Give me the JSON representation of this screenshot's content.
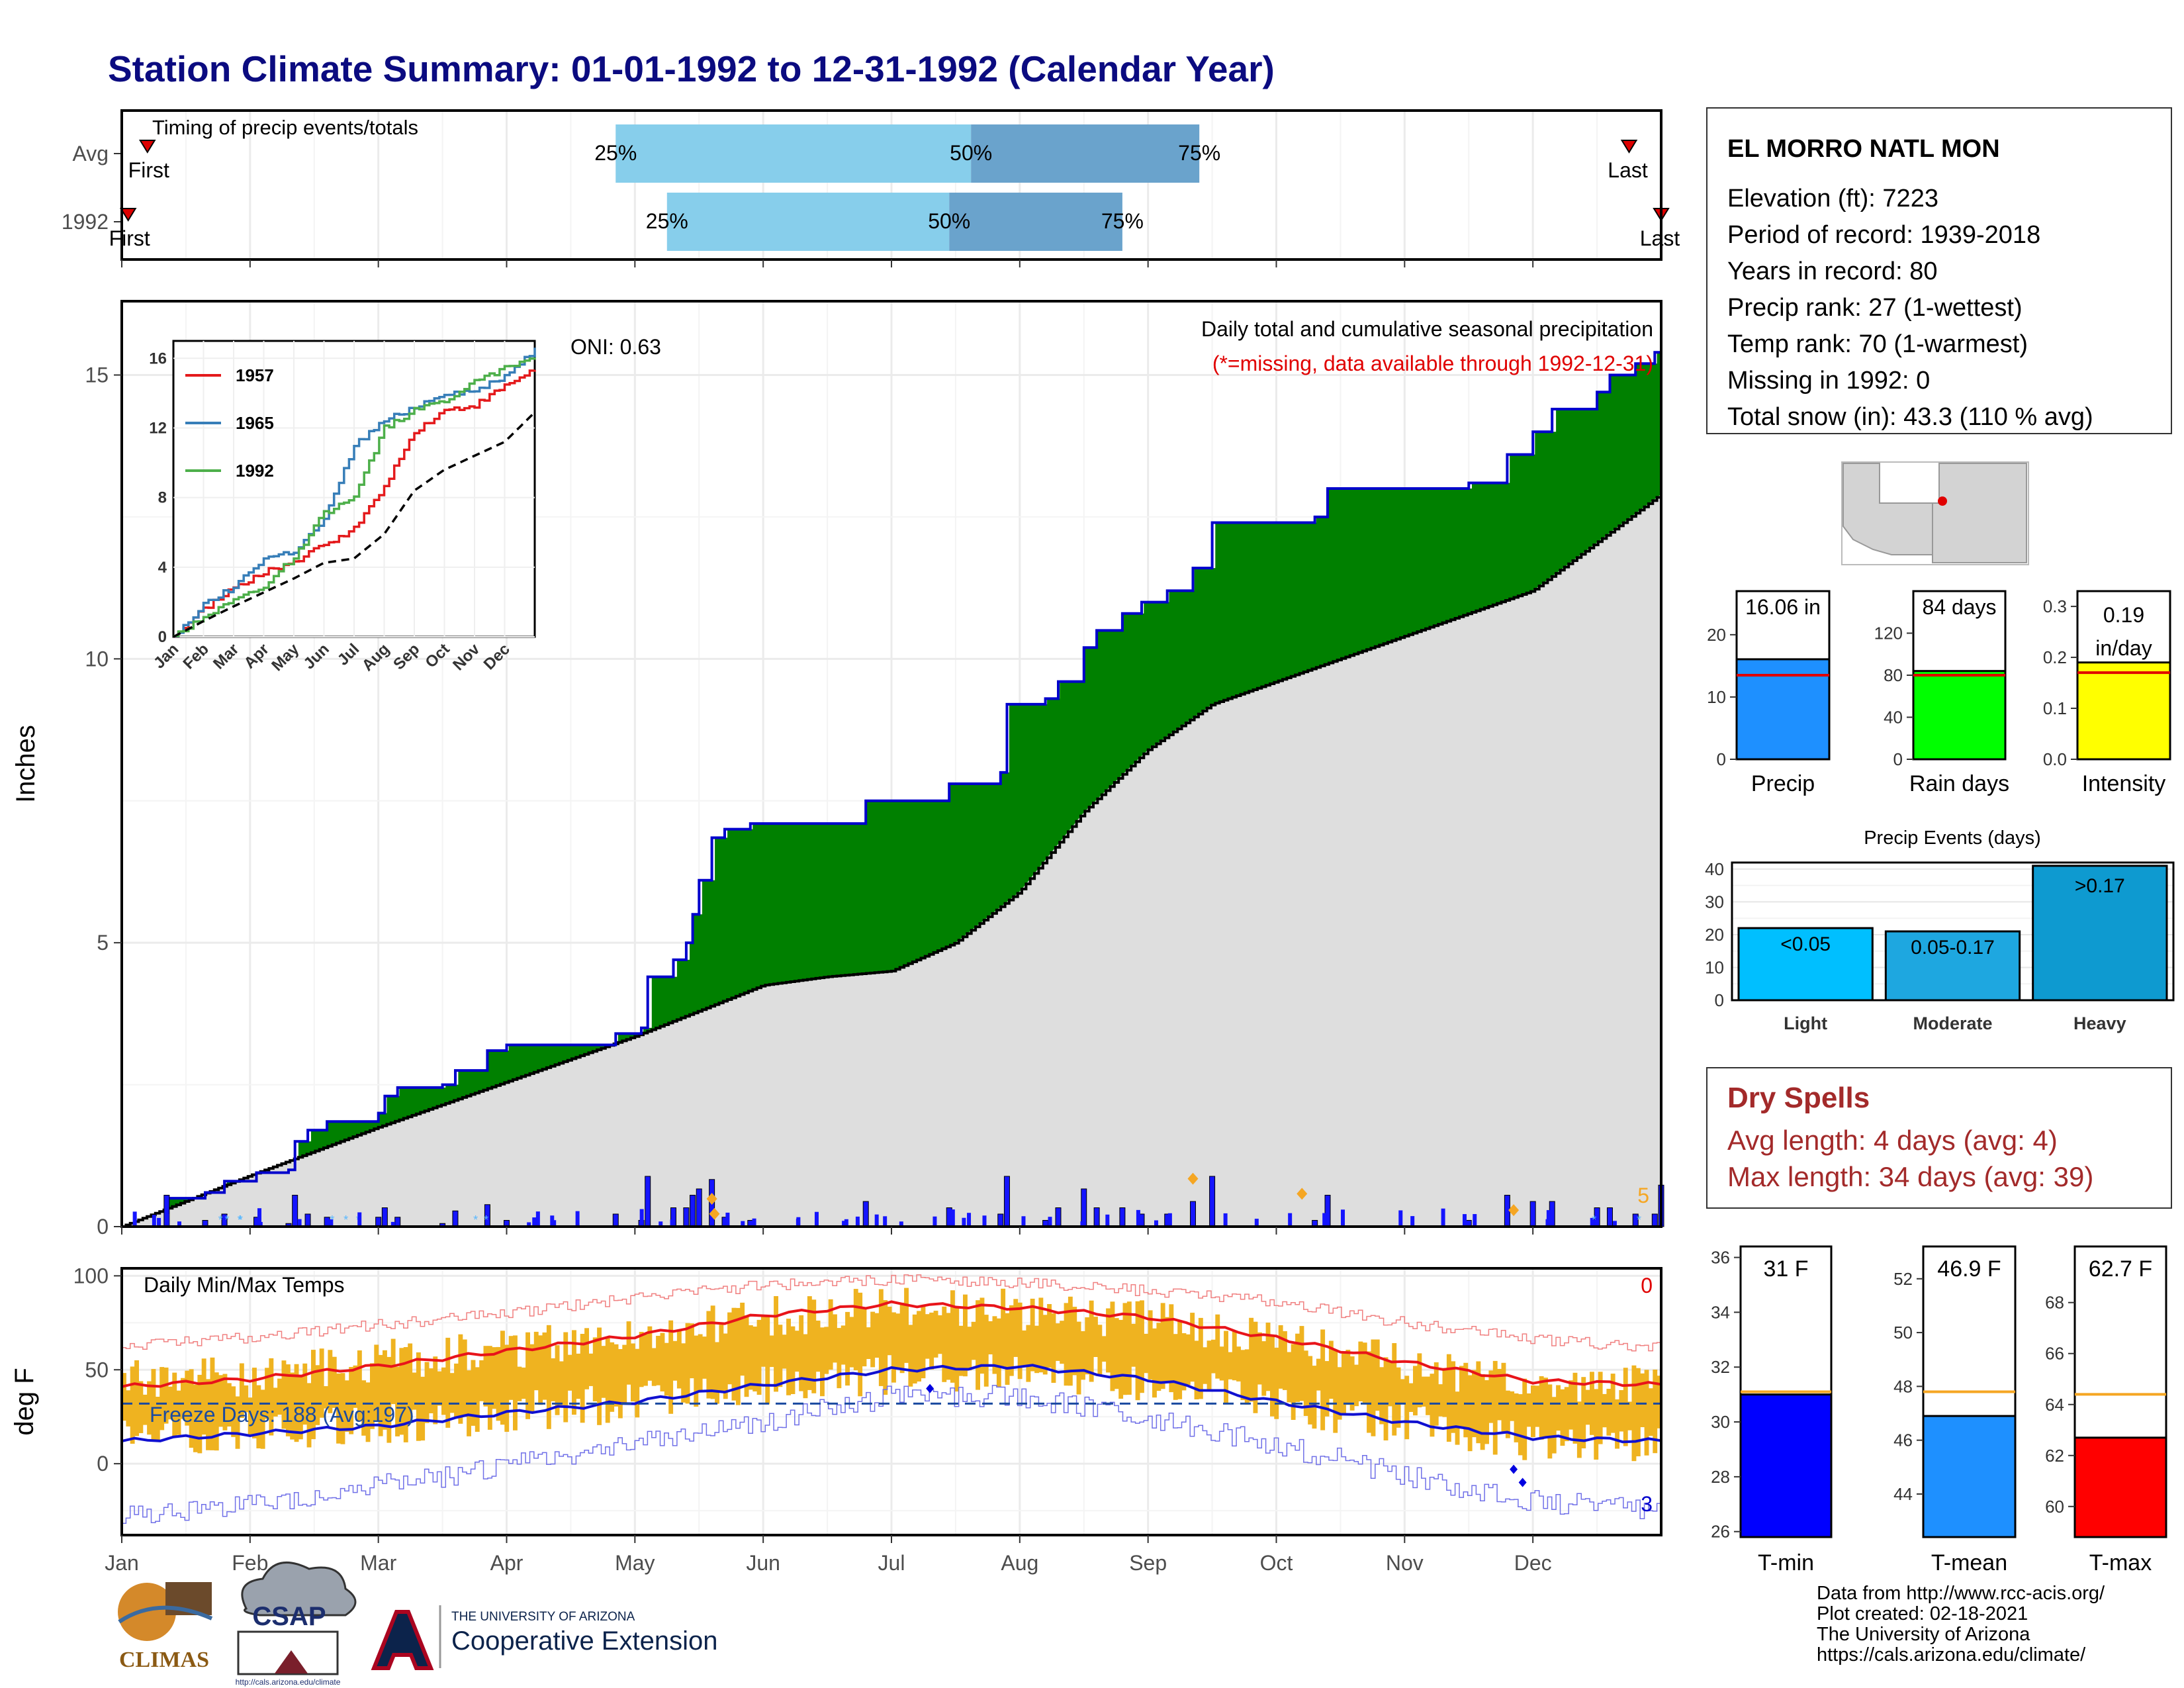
{
  "title": "Station Climate Summary: 01-01-1992 to 12-31-1992 (Calendar Year)",
  "station": {
    "name": "EL MORRO NATL MON",
    "lines": [
      "Elevation (ft): 7223",
      "Period of record: 1939-2018",
      "Years in record: 80",
      "Precip rank: 27 (1-wettest)",
      "Temp rank: 70 (1-warmest)",
      "Missing in 1992: 0",
      "Total snow (in): 43.3 (110 % avg)"
    ]
  },
  "dry_spells": {
    "title": "Dry Spells",
    "avg": "Avg length: 4 days (avg: 4)",
    "max": "Max length: 34 days (avg: 39)"
  },
  "credits": [
    "Data from http://www.rcc-acis.org/",
    "Plot created: 02-18-2021",
    "The University of Arizona",
    "https://cals.arizona.edu/climate/"
  ],
  "logos": {
    "climas": "CLIMAS",
    "csap": "CSAP",
    "csap_url": "http://cals.arizona.edu/climate",
    "ua_line1": "THE UNIVERSITY OF ARIZONA",
    "ua_line2": "Cooperative Extension"
  },
  "colors": {
    "title": "#0b0b80",
    "above_avg": "#008000",
    "below_avg": "#8b5a14",
    "avg_fill": "#dedede",
    "cum_line": "#0000cc",
    "temp_bar": "#efb320",
    "tmax_line": "#e8141a",
    "tmin_line": "#1010d0",
    "dry_spell": "#a32a2a"
  },
  "chart_data": [
    {
      "id": "timing",
      "type": "bar",
      "title": "Timing of precip events/totals",
      "rows": [
        "Avg",
        "1992"
      ],
      "x_units": "month",
      "series": [
        {
          "row": "Avg",
          "first_label": "First",
          "last_label": "Last",
          "first": 0.2,
          "p25": 3.85,
          "p50": 6.62,
          "p75": 8.4,
          "last": 11.75
        },
        {
          "row": "1992",
          "first_label": "First",
          "last_label": "Last",
          "first": 0.05,
          "p25": 4.25,
          "p50": 6.45,
          "p75": 7.8,
          "last": 12.0
        }
      ],
      "labels": {
        "p25": "25%",
        "p50": "50%",
        "p75": "75%"
      }
    },
    {
      "id": "precip",
      "type": "area",
      "title": "Daily total and cumulative seasonal precipitation",
      "subtitle": "(*=missing, data available through 1992-12-31)",
      "annotation": "ONI: 0.63",
      "ylabel": "Inches",
      "ylim": [
        0,
        16.3
      ],
      "yticks": [
        0,
        5,
        10,
        15
      ],
      "xticks": [
        "Jan",
        "Feb",
        "Mar",
        "Apr",
        "May",
        "Jun",
        "Jul",
        "Aug",
        "Sep",
        "Oct",
        "Nov",
        "Dec"
      ],
      "corner_label": "5",
      "observed_1992": [
        [
          0,
          0
        ],
        [
          0.35,
          0.5
        ],
        [
          0.65,
          0.6
        ],
        [
          0.8,
          0.8
        ],
        [
          1.05,
          0.95
        ],
        [
          1.3,
          1.0
        ],
        [
          1.35,
          1.5
        ],
        [
          1.45,
          1.7
        ],
        [
          1.6,
          1.85
        ],
        [
          2.0,
          2.0
        ],
        [
          2.05,
          2.3
        ],
        [
          2.15,
          2.45
        ],
        [
          2.5,
          2.5
        ],
        [
          2.6,
          2.75
        ],
        [
          2.85,
          3.1
        ],
        [
          3.0,
          3.2
        ],
        [
          3.5,
          3.2
        ],
        [
          3.85,
          3.4
        ],
        [
          4.05,
          3.5
        ],
        [
          4.1,
          4.4
        ],
        [
          4.3,
          4.7
        ],
        [
          4.4,
          5.0
        ],
        [
          4.45,
          5.5
        ],
        [
          4.5,
          6.1
        ],
        [
          4.6,
          6.85
        ],
        [
          4.7,
          7.0
        ],
        [
          4.9,
          7.1
        ],
        [
          5.45,
          7.1
        ],
        [
          5.8,
          7.5
        ],
        [
          6.35,
          7.5
        ],
        [
          6.45,
          7.8
        ],
        [
          6.7,
          7.8
        ],
        [
          6.85,
          8.0
        ],
        [
          6.9,
          9.2
        ],
        [
          7.2,
          9.3
        ],
        [
          7.3,
          9.6
        ],
        [
          7.5,
          10.2
        ],
        [
          7.6,
          10.5
        ],
        [
          7.8,
          10.8
        ],
        [
          7.95,
          11.0
        ],
        [
          8.15,
          11.2
        ],
        [
          8.35,
          11.6
        ],
        [
          8.5,
          12.4
        ],
        [
          9.3,
          12.5
        ],
        [
          9.4,
          13.0
        ],
        [
          10.35,
          13.0
        ],
        [
          10.5,
          13.1
        ],
        [
          10.8,
          13.6
        ],
        [
          11.0,
          14.0
        ],
        [
          11.15,
          14.4
        ],
        [
          11.5,
          14.7
        ],
        [
          11.6,
          15.0
        ],
        [
          11.8,
          15.2
        ],
        [
          11.95,
          15.4
        ],
        [
          12.0,
          16.06
        ]
      ],
      "average_cumulative": [
        [
          0,
          0
        ],
        [
          1,
          0.9
        ],
        [
          2,
          1.75
        ],
        [
          3,
          2.55
        ],
        [
          4,
          3.35
        ],
        [
          5,
          4.25
        ],
        [
          5.5,
          4.4
        ],
        [
          6,
          4.5
        ],
        [
          6.5,
          5.0
        ],
        [
          7,
          5.9
        ],
        [
          7.5,
          7.3
        ],
        [
          8,
          8.4
        ],
        [
          8.5,
          9.2
        ],
        [
          9,
          9.6
        ],
        [
          10,
          10.4
        ],
        [
          11,
          11.2
        ],
        [
          12,
          12.9
        ]
      ],
      "daily_markers_note": "Daily precipitation bars at the bottom (blue), snow (light blue), extremes (orange diamonds)"
    },
    {
      "id": "precip_inset",
      "type": "line",
      "ylim": [
        0,
        16
      ],
      "yticks": [
        0,
        4,
        8,
        12,
        16
      ],
      "xticks": [
        "Jan",
        "Feb",
        "Mar",
        "Apr",
        "May",
        "Jun",
        "Jul",
        "Aug",
        "Sep",
        "Oct",
        "Nov",
        "Dec"
      ],
      "series": [
        {
          "name": "1957",
          "color": "#e41a1c",
          "values": [
            [
              0,
              0
            ],
            [
              1,
              1.6
            ],
            [
              2,
              2.8
            ],
            [
              3,
              3.7
            ],
            [
              4,
              4.3
            ],
            [
              5,
              5.3
            ],
            [
              6,
              6.2
            ],
            [
              7,
              8.7
            ],
            [
              8,
              11.8
            ],
            [
              9,
              13.0
            ],
            [
              10,
              13.3
            ],
            [
              11,
              14.4
            ],
            [
              12,
              15.4
            ]
          ]
        },
        {
          "name": "1965",
          "color": "#377eb8",
          "values": [
            [
              0,
              0
            ],
            [
              1,
              1.8
            ],
            [
              2,
              2.9
            ],
            [
              3,
              4.5
            ],
            [
              4,
              4.9
            ],
            [
              5,
              6.7
            ],
            [
              6,
              11.0
            ],
            [
              7,
              12.4
            ],
            [
              8,
              13.2
            ],
            [
              9,
              14.0
            ],
            [
              10,
              14.1
            ],
            [
              11,
              15.0
            ],
            [
              12,
              16.5
            ]
          ]
        },
        {
          "name": "1992",
          "color": "#4daf4a",
          "values": [
            [
              0,
              0
            ],
            [
              1,
              1.2
            ],
            [
              2,
              2.1
            ],
            [
              3,
              2.9
            ],
            [
              4,
              4.6
            ],
            [
              5,
              7.1
            ],
            [
              6,
              8.0
            ],
            [
              7,
              12.0
            ],
            [
              8,
              13.0
            ],
            [
              9,
              13.6
            ],
            [
              10,
              14.7
            ],
            [
              11,
              15.4
            ],
            [
              12,
              16.06
            ]
          ]
        },
        {
          "name": "",
          "color": "#000000",
          "dash": true,
          "values": [
            [
              0,
              0
            ],
            [
              1,
              0.9
            ],
            [
              2,
              1.75
            ],
            [
              3,
              2.55
            ],
            [
              4,
              3.35
            ],
            [
              5,
              4.25
            ],
            [
              6,
              4.5
            ],
            [
              7,
              5.9
            ],
            [
              8,
              8.4
            ],
            [
              9,
              9.6
            ],
            [
              10,
              10.4
            ],
            [
              11,
              11.2
            ],
            [
              12,
              12.9
            ]
          ]
        }
      ]
    },
    {
      "id": "temps",
      "type": "line",
      "title": "Daily Min/Max Temps",
      "ylabel": "deg F",
      "ylim": [
        -38,
        104
      ],
      "yticks": [
        0,
        50,
        100
      ],
      "freeze_label": "Freeze Days: 188 (Avg:197)",
      "freeze_line": 32,
      "count_top": "0",
      "count_bottom": "3",
      "xticks": [
        "Jan",
        "Feb",
        "Mar",
        "Apr",
        "May",
        "Jun",
        "Jul",
        "Aug",
        "Sep",
        "Oct",
        "Nov",
        "Dec"
      ],
      "avg_tmax": [
        [
          0,
          41
        ],
        [
          1,
          45
        ],
        [
          2,
          52
        ],
        [
          3,
          60
        ],
        [
          4,
          68
        ],
        [
          5,
          79
        ],
        [
          6,
          85
        ],
        [
          7,
          83
        ],
        [
          8,
          78
        ],
        [
          9,
          67
        ],
        [
          10,
          54
        ],
        [
          11,
          44
        ],
        [
          12,
          42
        ]
      ],
      "avg_tmin": [
        [
          0,
          12
        ],
        [
          1,
          16
        ],
        [
          2,
          20
        ],
        [
          3,
          27
        ],
        [
          4,
          33
        ],
        [
          5,
          42
        ],
        [
          6,
          50
        ],
        [
          7,
          52
        ],
        [
          8,
          45
        ],
        [
          9,
          33
        ],
        [
          10,
          22
        ],
        [
          11,
          14
        ],
        [
          12,
          12
        ]
      ],
      "record_high": [
        [
          0,
          63
        ],
        [
          1,
          67
        ],
        [
          2,
          74
        ],
        [
          3,
          80
        ],
        [
          4,
          88
        ],
        [
          5,
          95
        ],
        [
          6,
          98
        ],
        [
          7,
          96
        ],
        [
          8,
          92
        ],
        [
          9,
          86
        ],
        [
          10,
          75
        ],
        [
          11,
          66
        ],
        [
          12,
          62
        ]
      ],
      "record_low": [
        [
          0,
          -27
        ],
        [
          1,
          -22
        ],
        [
          2,
          -12
        ],
        [
          3,
          -1
        ],
        [
          4,
          12
        ],
        [
          5,
          22
        ],
        [
          6,
          36
        ],
        [
          7,
          36
        ],
        [
          8,
          24
        ],
        [
          9,
          10
        ],
        [
          10,
          -6
        ],
        [
          11,
          -20
        ],
        [
          12,
          -25
        ]
      ],
      "obs_max": [
        [
          0,
          45
        ],
        [
          1,
          46
        ],
        [
          2,
          55
        ],
        [
          3,
          61
        ],
        [
          4,
          68
        ],
        [
          5,
          78
        ],
        [
          6,
          84
        ],
        [
          7,
          82
        ],
        [
          8,
          76
        ],
        [
          9,
          67
        ],
        [
          10,
          52
        ],
        [
          11,
          45
        ],
        [
          12,
          42
        ]
      ],
      "obs_min": [
        [
          0,
          14
        ],
        [
          1,
          17
        ],
        [
          2,
          21
        ],
        [
          3,
          27
        ],
        [
          4,
          33
        ],
        [
          5,
          42
        ],
        [
          6,
          48
        ],
        [
          7,
          50
        ],
        [
          8,
          44
        ],
        [
          9,
          32
        ],
        [
          10,
          21
        ],
        [
          11,
          12
        ],
        [
          12,
          10
        ]
      ]
    },
    {
      "id": "precip_summary",
      "type": "bar",
      "panels": [
        {
          "label": "Precip",
          "value_label": "16.06 in",
          "value": 16.06,
          "avg": 13.5,
          "ymax": 27,
          "yticks": [
            0,
            10,
            20
          ],
          "color": "#1e90ff"
        },
        {
          "label": "Rain days",
          "value_label": "84 days",
          "value": 84,
          "avg": 80,
          "ymax": 160,
          "yticks": [
            0,
            40,
            80,
            120
          ],
          "color": "#00ff00"
        },
        {
          "label": "Intensity",
          "value_label": "0.19",
          "value_label2": "in/day",
          "value": 0.19,
          "avg": 0.17,
          "ymax": 0.33,
          "yticks": [
            0.0,
            0.1,
            0.2,
            0.3
          ],
          "color": "#ffff00"
        }
      ]
    },
    {
      "id": "precip_events",
      "type": "bar",
      "title": "Precip Events (days)",
      "categories": [
        "Light",
        "Moderate",
        "Heavy"
      ],
      "bar_labels": [
        "<0.05",
        "0.05-0.17",
        ">0.17"
      ],
      "values": [
        22,
        21,
        41
      ],
      "ylim": [
        0,
        42
      ],
      "yticks": [
        0,
        10,
        20,
        30,
        40
      ],
      "colors": [
        "#00bfff",
        "#1ea7e0",
        "#0e9ad0"
      ]
    },
    {
      "id": "temp_summary",
      "type": "bar",
      "panels": [
        {
          "label": "T-min",
          "value_label": "31 F",
          "value": 31.0,
          "avg": 31.1,
          "ylim": [
            25.8,
            36.4
          ],
          "yticks": [
            26,
            28,
            30,
            32,
            34,
            36
          ],
          "color": "#0000ff"
        },
        {
          "label": "T-mean",
          "value_label": "46.9 F",
          "value": 46.9,
          "avg": 47.8,
          "ylim": [
            42.4,
            53.2
          ],
          "yticks": [
            44,
            46,
            48,
            50,
            52
          ],
          "color": "#1e90ff"
        },
        {
          "label": "T-max",
          "value_label": "62.7 F",
          "value": 62.7,
          "avg": 64.4,
          "ylim": [
            58.8,
            70.2
          ],
          "yticks": [
            60,
            62,
            64,
            66,
            68
          ],
          "color": "#ff0000"
        }
      ]
    }
  ]
}
